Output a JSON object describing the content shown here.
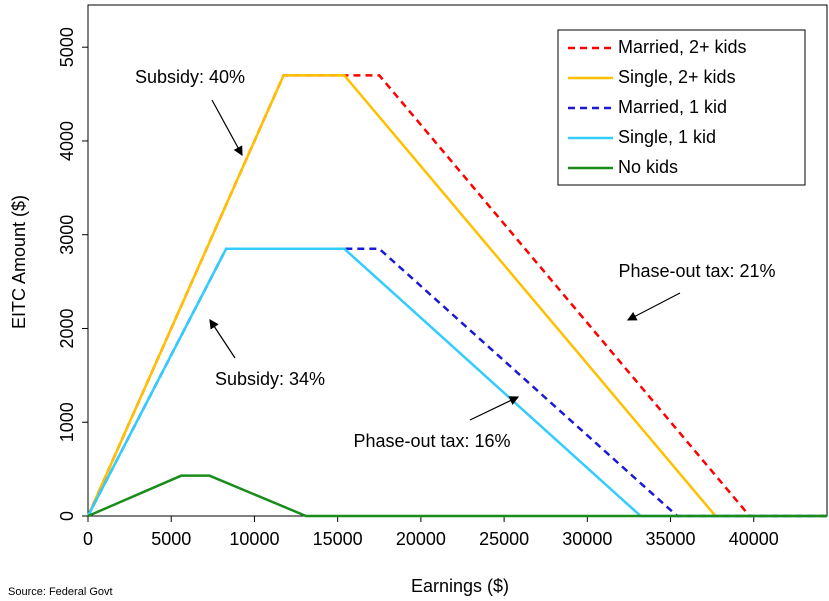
{
  "chart_data": {
    "type": "line",
    "x_label": "Earnings ($)",
    "y_label": "EITC Amount ($)",
    "source": "Source: Federal Govt",
    "xlim": [
      0,
      44400
    ],
    "ylim": [
      0,
      5450
    ],
    "xticks": [
      0,
      5000,
      10000,
      15000,
      20000,
      25000,
      30000,
      35000,
      40000
    ],
    "yticks": [
      0,
      1000,
      2000,
      3000,
      4000,
      5000
    ],
    "legend": "top-right",
    "series": [
      {
        "name": "Married, 2+ kids",
        "color": "#ff0000",
        "dashed": true,
        "x": [
          0,
          11750,
          17500,
          39750,
          44400
        ],
        "values": [
          0,
          4700,
          4700,
          0,
          0
        ]
      },
      {
        "name": "Single, 2+ kids",
        "color": "#ffc000",
        "dashed": false,
        "x": [
          0,
          11750,
          15400,
          37700,
          44400
        ],
        "values": [
          0,
          4700,
          4700,
          0,
          0
        ]
      },
      {
        "name": "Married, 1 kid",
        "color": "#1a1ad6",
        "dashed": true,
        "x": [
          0,
          8300,
          17500,
          35400,
          44400
        ],
        "values": [
          0,
          2850,
          2850,
          0,
          0
        ]
      },
      {
        "name": "Single, 1 kid",
        "color": "#33ccff",
        "dashed": false,
        "x": [
          0,
          8300,
          15400,
          33200,
          44400
        ],
        "values": [
          0,
          2850,
          2850,
          0,
          0
        ]
      },
      {
        "name": "No kids",
        "color": "#1a8c1a",
        "dashed": false,
        "x": [
          0,
          5600,
          7300,
          13100,
          44400
        ],
        "values": [
          0,
          430,
          430,
          0,
          0
        ]
      }
    ],
    "annotations": [
      "Subsidy: 40%",
      "Subsidy: 34%",
      "Phase-out tax: 16%",
      "Phase-out tax: 21%"
    ]
  }
}
